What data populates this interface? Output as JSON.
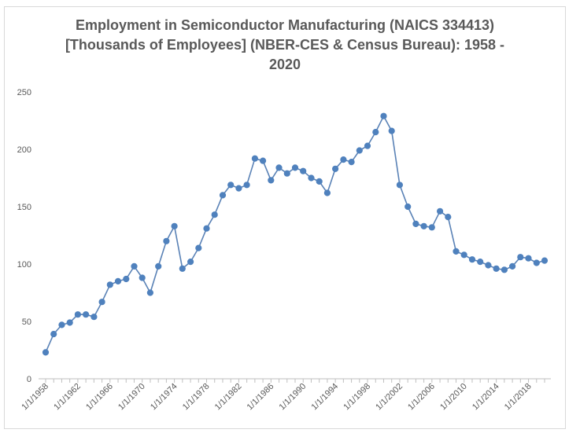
{
  "chart_data": {
    "type": "line",
    "title_lines": [
      "Employment in Semiconductor Manufacturing (NAICS 334413)",
      "[Thousands of Employees] (NBER-CES & Census Bureau): 1958 -",
      "2020"
    ],
    "xlabel": "",
    "ylabel": "",
    "ylim": [
      0,
      250
    ],
    "yticks": [
      "0",
      "50",
      "100",
      "150",
      "200",
      "250"
    ],
    "xtick_labels": [
      "1/1/1958",
      "1/1/1962",
      "1/1/1966",
      "1/1/1970",
      "1/1/1974",
      "1/1/1978",
      "1/1/1982",
      "1/1/1986",
      "1/1/1990",
      "1/1/1994",
      "1/1/1998",
      "1/1/2002",
      "1/1/2006",
      "1/1/2010",
      "1/1/2014",
      "1/1/2018"
    ],
    "x": [
      1958,
      1959,
      1960,
      1961,
      1962,
      1963,
      1964,
      1965,
      1966,
      1967,
      1968,
      1969,
      1970,
      1971,
      1972,
      1973,
      1974,
      1975,
      1976,
      1977,
      1978,
      1979,
      1980,
      1981,
      1982,
      1983,
      1984,
      1985,
      1986,
      1987,
      1988,
      1989,
      1990,
      1991,
      1992,
      1993,
      1994,
      1995,
      1996,
      1997,
      1998,
      1999,
      2000,
      2001,
      2002,
      2003,
      2004,
      2005,
      2006,
      2007,
      2008,
      2009,
      2010,
      2011,
      2012,
      2013,
      2014,
      2015,
      2016,
      2017,
      2018,
      2019,
      2020
    ],
    "series": [
      {
        "values": [
          23,
          39,
          47,
          49,
          56,
          56,
          54,
          67,
          82,
          85,
          87,
          98,
          88,
          75,
          98,
          120,
          133,
          96,
          102,
          114,
          131,
          143,
          160,
          169,
          166,
          169,
          192,
          190,
          173,
          184,
          179,
          184,
          181,
          175,
          172,
          162,
          183,
          191,
          189,
          199,
          203,
          215,
          229,
          216,
          169,
          150,
          135,
          133,
          132,
          146,
          141,
          111,
          108,
          104,
          102,
          99,
          96,
          95,
          98,
          106,
          105,
          101,
          103
        ]
      }
    ],
    "grid": false,
    "legend": "none",
    "colors": {
      "line": "#5a82b6",
      "marker": "#4f81bd",
      "axis": "#bfbfbf",
      "text": "#595959"
    }
  }
}
